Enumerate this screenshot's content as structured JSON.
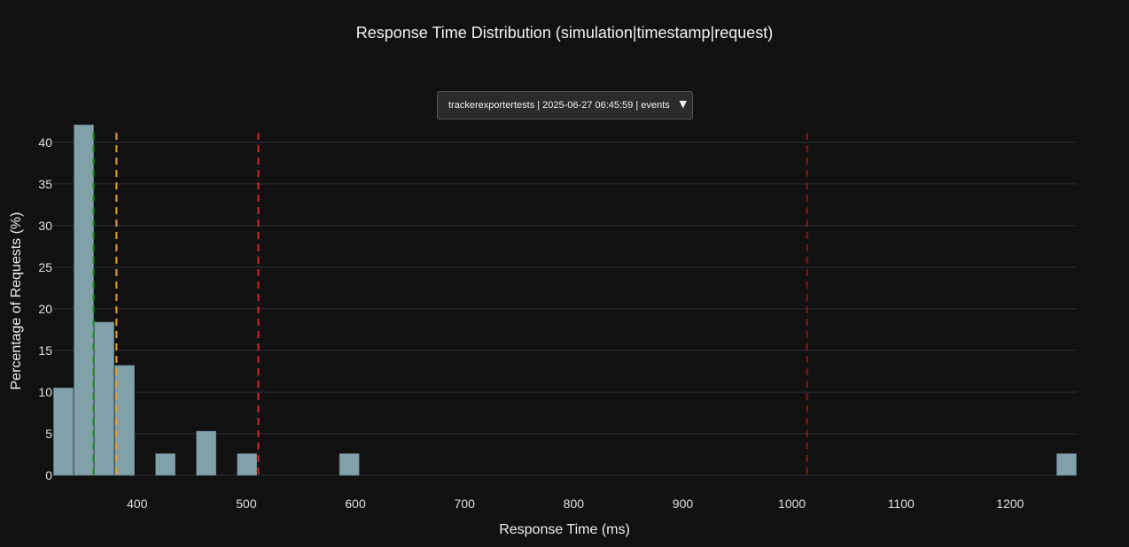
{
  "chart_data": {
    "type": "bar",
    "title": "Response Time Distribution (simulation|timestamp|request)",
    "xlabel": "Response Time (ms)",
    "ylabel": "Percentage of Requests (%)",
    "xlim": [
      323,
      1261
    ],
    "ylim": [
      0,
      42
    ],
    "x_ticks": [
      400,
      500,
      600,
      700,
      800,
      900,
      1000,
      1100,
      1200
    ],
    "y_ticks": [
      0,
      5,
      10,
      15,
      20,
      25,
      30,
      35,
      40
    ],
    "grid": true,
    "bin_width": 18.7,
    "bins": [
      {
        "start": 323.0,
        "value": 10.5
      },
      {
        "start": 341.7,
        "value": 42.1
      },
      {
        "start": 360.4,
        "value": 18.4
      },
      {
        "start": 379.1,
        "value": 13.2
      },
      {
        "start": 416.5,
        "value": 2.6
      },
      {
        "start": 453.9,
        "value": 5.3
      },
      {
        "start": 491.3,
        "value": 2.6
      },
      {
        "start": 585.0,
        "value": 2.6
      },
      {
        "start": 1242.3,
        "value": 2.6
      }
    ],
    "reference_lines": [
      {
        "x": 360,
        "color": "#1a8c1a"
      },
      {
        "x": 381,
        "color": "#f0a020"
      },
      {
        "x": 511,
        "color": "#e02020"
      },
      {
        "x": 1014,
        "color": "#9a0c0c"
      }
    ],
    "bar_color": "#82a0aa",
    "background": "#111111",
    "grid_color": "#283040"
  },
  "dropdown": {
    "selected": "trackerexportertests | 2025-06-27 06:45:59 | events",
    "arrow_icon": "triangle-down-icon"
  }
}
